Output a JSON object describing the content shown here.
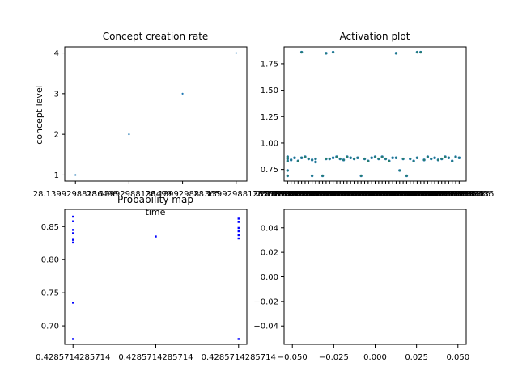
{
  "chart_data": [
    {
      "id": "concept",
      "type": "scatter",
      "title": "Concept creation rate",
      "xlabel": "time",
      "ylabel": "concept level",
      "x_tick_labels": [
        "28.13992988136498",
        "28.13992988136499",
        "28.139929881365",
        "28.13992988136501"
      ],
      "yticks": [
        1,
        2,
        3,
        4
      ],
      "ylim": [
        0.85,
        4.15
      ],
      "xlim": [
        -0.2,
        3.2
      ],
      "points": [
        {
          "x": 0,
          "y": 1
        },
        {
          "x": 1,
          "y": 2
        },
        {
          "x": 2,
          "y": 3
        },
        {
          "x": 3,
          "y": 4
        }
      ],
      "color": "#1f77b4",
      "grid": false
    },
    {
      "id": "activation",
      "type": "scatter",
      "title": "Activation plot",
      "xlabel": "",
      "ylabel": "",
      "yticks": [
        0.75,
        1.0,
        1.25,
        1.5,
        1.75
      ],
      "ytick_labels": [
        "0.75",
        "1.00",
        "1.25",
        "1.50",
        "1.75"
      ],
      "ylim": [
        0.64,
        1.91
      ],
      "xlim": [
        -1,
        51
      ],
      "x_tick_count": 50,
      "x_tick_label_text": "28.13992988136",
      "color": "#1f77b4",
      "color_overlay": "#2a7f62",
      "grid": false,
      "points": [
        {
          "x": 0,
          "y": 0.87
        },
        {
          "x": 0,
          "y": 0.85
        },
        {
          "x": 0,
          "y": 0.83
        },
        {
          "x": 0,
          "y": 0.74
        },
        {
          "x": 0,
          "y": 0.69
        },
        {
          "x": 1,
          "y": 0.84
        },
        {
          "x": 2,
          "y": 0.86
        },
        {
          "x": 3,
          "y": 0.83
        },
        {
          "x": 4,
          "y": 1.86
        },
        {
          "x": 4,
          "y": 0.86
        },
        {
          "x": 5,
          "y": 0.87
        },
        {
          "x": 6,
          "y": 0.85
        },
        {
          "x": 7,
          "y": 0.69
        },
        {
          "x": 7,
          "y": 0.84
        },
        {
          "x": 8,
          "y": 0.85
        },
        {
          "x": 8,
          "y": 0.82
        },
        {
          "x": 10,
          "y": 0.69
        },
        {
          "x": 11,
          "y": 1.85
        },
        {
          "x": 11,
          "y": 0.85
        },
        {
          "x": 12,
          "y": 0.85
        },
        {
          "x": 13,
          "y": 1.86
        },
        {
          "x": 13,
          "y": 0.86
        },
        {
          "x": 14,
          "y": 0.87
        },
        {
          "x": 15,
          "y": 0.85
        },
        {
          "x": 16,
          "y": 0.84
        },
        {
          "x": 17,
          "y": 0.87
        },
        {
          "x": 18,
          "y": 0.86
        },
        {
          "x": 19,
          "y": 0.85
        },
        {
          "x": 20,
          "y": 0.86
        },
        {
          "x": 21,
          "y": 0.69
        },
        {
          "x": 22,
          "y": 0.85
        },
        {
          "x": 23,
          "y": 0.83
        },
        {
          "x": 24,
          "y": 0.86
        },
        {
          "x": 25,
          "y": 0.87
        },
        {
          "x": 26,
          "y": 0.85
        },
        {
          "x": 27,
          "y": 0.87
        },
        {
          "x": 28,
          "y": 0.85
        },
        {
          "x": 29,
          "y": 0.83
        },
        {
          "x": 30,
          "y": 0.86
        },
        {
          "x": 31,
          "y": 1.85
        },
        {
          "x": 31,
          "y": 0.86
        },
        {
          "x": 32,
          "y": 0.74
        },
        {
          "x": 33,
          "y": 0.85
        },
        {
          "x": 34,
          "y": 0.69
        },
        {
          "x": 35,
          "y": 0.85
        },
        {
          "x": 36,
          "y": 0.83
        },
        {
          "x": 37,
          "y": 0.86
        },
        {
          "x": 37,
          "y": 1.86
        },
        {
          "x": 38,
          "y": 1.86
        },
        {
          "x": 39,
          "y": 0.84
        },
        {
          "x": 40,
          "y": 0.87
        },
        {
          "x": 41,
          "y": 0.85
        },
        {
          "x": 42,
          "y": 0.86
        },
        {
          "x": 43,
          "y": 0.84
        },
        {
          "x": 44,
          "y": 0.85
        },
        {
          "x": 45,
          "y": 0.87
        },
        {
          "x": 46,
          "y": 0.86
        },
        {
          "x": 47,
          "y": 0.83
        },
        {
          "x": 48,
          "y": 0.87
        },
        {
          "x": 49,
          "y": 0.86
        }
      ]
    },
    {
      "id": "probability",
      "type": "scatter",
      "title": "Probability map",
      "xlabel": "",
      "ylabel": "",
      "yticks": [
        0.7,
        0.75,
        0.8,
        0.85
      ],
      "ytick_labels": [
        "0.70",
        "0.75",
        "0.80",
        "0.85"
      ],
      "ylim": [
        0.672,
        0.876
      ],
      "xlim": [
        -0.1,
        2.1
      ],
      "x_tick_labels": [
        "0.4285714285714",
        "0.4285714285714",
        "0.4285714285714"
      ],
      "color": "#0000ff",
      "grid": false,
      "points": [
        {
          "x": 0,
          "y": 0.865
        },
        {
          "x": 0,
          "y": 0.858
        },
        {
          "x": 0,
          "y": 0.845
        },
        {
          "x": 0,
          "y": 0.84
        },
        {
          "x": 0,
          "y": 0.83
        },
        {
          "x": 0,
          "y": 0.826
        },
        {
          "x": 0,
          "y": 0.735
        },
        {
          "x": 0,
          "y": 0.68
        },
        {
          "x": 1,
          "y": 0.835
        },
        {
          "x": 2,
          "y": 0.862
        },
        {
          "x": 2,
          "y": 0.857
        },
        {
          "x": 2,
          "y": 0.848
        },
        {
          "x": 2,
          "y": 0.843
        },
        {
          "x": 2,
          "y": 0.837
        },
        {
          "x": 2,
          "y": 0.832
        },
        {
          "x": 2,
          "y": 0.68
        }
      ]
    },
    {
      "id": "empty",
      "type": "scatter",
      "title": "",
      "xlabel": "",
      "ylabel": "",
      "xticks": [
        -0.05,
        -0.025,
        0.0,
        0.025,
        0.05
      ],
      "xtick_labels": [
        "−0.050",
        "−0.025",
        "0.000",
        "0.025",
        "0.050"
      ],
      "yticks": [
        0.04,
        0.02,
        0.0,
        -0.02,
        -0.04
      ],
      "ytick_labels": [
        "0.04",
        "0.02",
        "0.00",
        "−0.02",
        "−0.04"
      ],
      "xlim": [
        -0.055,
        0.055
      ],
      "ylim": [
        -0.055,
        0.055
      ],
      "points": [],
      "grid": false
    }
  ]
}
